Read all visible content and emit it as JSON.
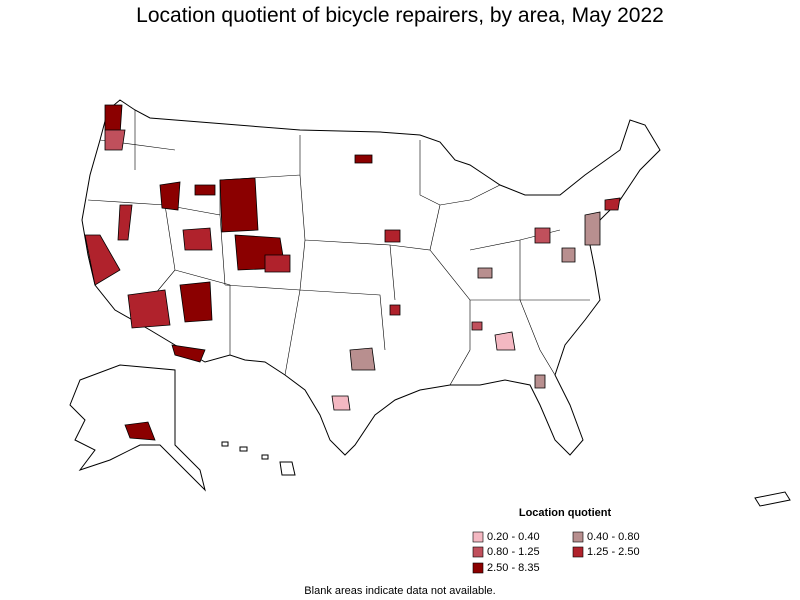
{
  "title": "Location quotient of bicycle repairers, by area, May 2022",
  "legend": {
    "title": "Location quotient",
    "items": [
      {
        "label": "0.20 - 0.40",
        "color": "#f4b8c2"
      },
      {
        "label": "0.40 - 0.80",
        "color": "#b88f8f"
      },
      {
        "label": "0.80 - 1.25",
        "color": "#c0505c"
      },
      {
        "label": "1.25 - 2.50",
        "color": "#b0222c"
      },
      {
        "label": "2.50 - 8.35",
        "color": "#8b0000"
      }
    ]
  },
  "footnote": "Blank areas indicate data not available."
}
